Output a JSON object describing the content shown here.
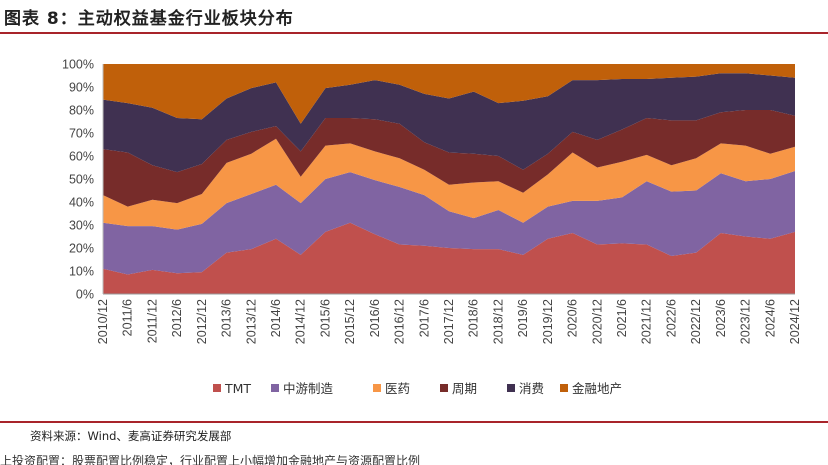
{
  "title": "图表 8：主动权益基金行业板块分布",
  "source": "资料来源：Wind、麦高证券研究发展部",
  "truncated_text": "上投资配置：股票配置比例稳定，行业配置上小幅增加金融地产与资源配置比例",
  "colors": {
    "TMT": "#c0504d",
    "中游制造": "#8064a2",
    "医药": "#f79646",
    "周期": "#772c2a",
    "消费": "#403151",
    "金融地产": "#c0600a",
    "rule": "#a8242a"
  },
  "chart_data": {
    "type": "area",
    "stacked": true,
    "title": "主动权益基金行业板块分布",
    "xlabel": "",
    "ylabel": "",
    "ylim": [
      0,
      100
    ],
    "y_ticks": [
      "0%",
      "10%",
      "20%",
      "30%",
      "40%",
      "50%",
      "60%",
      "70%",
      "80%",
      "90%",
      "100%"
    ],
    "legend_position": "bottom",
    "categories": [
      "2010/12",
      "2011/6",
      "2011/12",
      "2012/6",
      "2012/12",
      "2013/6",
      "2013/12",
      "2014/6",
      "2014/12",
      "2015/6",
      "2015/12",
      "2016/6",
      "2016/12",
      "2017/6",
      "2017/12",
      "2018/6",
      "2018/12",
      "2019/6",
      "2019/12",
      "2020/6",
      "2020/12",
      "2021/6",
      "2021/12",
      "2022/6",
      "2022/12",
      "2023/6",
      "2023/12",
      "2024/6",
      "2024/12"
    ],
    "series": [
      {
        "name": "TMT",
        "values": [
          11,
          8.5,
          10.5,
          9,
          9.5,
          18,
          19.5,
          24,
          17,
          27,
          31,
          26,
          21.5,
          21,
          20,
          19.5,
          19.5,
          17,
          24,
          26.5,
          21.5,
          22,
          21.5,
          16.5,
          18,
          26.5,
          25,
          24,
          27
        ]
      },
      {
        "name": "中游制造",
        "values": [
          20,
          21,
          19,
          19,
          21,
          21.5,
          24,
          23.5,
          22.5,
          23,
          22,
          23.5,
          25,
          22,
          16,
          13.5,
          17,
          14,
          14,
          14,
          19,
          20,
          27.5,
          28,
          27,
          26,
          24,
          26,
          26.5
        ]
      },
      {
        "name": "医药",
        "values": [
          12,
          8.5,
          11.5,
          11.5,
          13,
          17.5,
          17.5,
          20,
          11.5,
          14.5,
          12.5,
          12.5,
          12.5,
          11,
          11.5,
          15.5,
          12.5,
          13,
          14,
          21,
          14.5,
          15.5,
          11.5,
          11.5,
          14,
          13,
          15.5,
          11,
          10.5
        ]
      },
      {
        "name": "周期",
        "values": [
          20,
          23.5,
          15,
          13.5,
          13,
          10,
          9.5,
          5.5,
          11,
          12,
          11,
          14,
          15,
          12,
          14,
          12.5,
          11,
          10,
          9,
          9,
          12,
          14,
          16,
          19.5,
          16.5,
          13.5,
          15.5,
          19,
          13.5
        ]
      },
      {
        "name": "消费",
        "values": [
          21.5,
          21.5,
          25,
          23.5,
          19.5,
          18,
          19,
          19,
          12,
          13,
          14.5,
          17,
          17,
          21,
          23.5,
          27,
          23,
          30,
          25,
          22.5,
          26,
          22,
          17,
          18.5,
          19,
          17,
          16,
          15,
          16.5
        ]
      },
      {
        "name": "金融地产",
        "values": [
          15.5,
          17,
          19,
          23.5,
          24,
          15,
          10.5,
          8,
          26,
          10.5,
          9,
          7,
          9,
          13,
          15,
          12,
          17,
          16,
          14,
          7,
          7,
          6.5,
          6.5,
          6,
          5.5,
          4,
          4,
          5,
          6
        ]
      }
    ]
  }
}
